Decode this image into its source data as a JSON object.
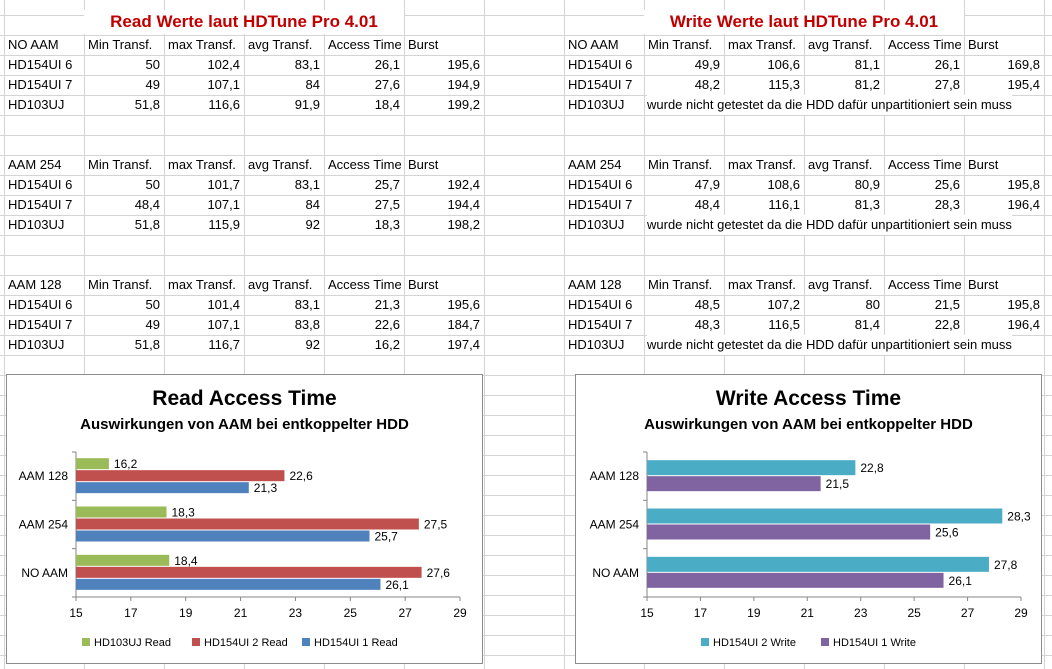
{
  "read": {
    "title": "Read Werte laut HDTune Pro 4.01",
    "headers": [
      "Min Transf.",
      "max Transf.",
      "avg Transf.",
      "Access Time",
      "Burst"
    ],
    "groups": [
      {
        "label": "NO AAM",
        "rows": [
          {
            "name": "HD154UI 6",
            "values": [
              "50",
              "102,4",
              "83,1",
              "26,1",
              "195,6"
            ]
          },
          {
            "name": "HD154UI 7",
            "values": [
              "49",
              "107,1",
              "84",
              "27,6",
              "194,9"
            ]
          },
          {
            "name": "HD103UJ",
            "values": [
              "51,8",
              "116,6",
              "91,9",
              "18,4",
              "199,2"
            ]
          }
        ]
      },
      {
        "label": "AAM 254",
        "rows": [
          {
            "name": "HD154UI 6",
            "values": [
              "50",
              "101,7",
              "83,1",
              "25,7",
              "192,4"
            ]
          },
          {
            "name": "HD154UI 7",
            "values": [
              "48,4",
              "107,1",
              "84",
              "27,5",
              "194,4"
            ]
          },
          {
            "name": "HD103UJ",
            "values": [
              "51,8",
              "115,9",
              "92",
              "18,3",
              "198,2"
            ]
          }
        ]
      },
      {
        "label": "AAM 128",
        "rows": [
          {
            "name": "HD154UI 6",
            "values": [
              "50",
              "101,4",
              "83,1",
              "21,3",
              "195,6"
            ]
          },
          {
            "name": "HD154UI 7",
            "values": [
              "49",
              "107,1",
              "83,8",
              "22,6",
              "184,7"
            ]
          },
          {
            "name": "HD103UJ",
            "values": [
              "51,8",
              "116,7",
              "92",
              "16,2",
              "197,4"
            ]
          }
        ]
      }
    ]
  },
  "write": {
    "title": "Write Werte laut HDTune Pro 4.01",
    "headers": [
      "Min Transf.",
      "max Transf.",
      "avg Transf.",
      "Access Time",
      "Burst"
    ],
    "note": "wurde nicht getestet da die HDD dafür unpartitioniert sein muss",
    "groups": [
      {
        "label": "NO AAM",
        "rows": [
          {
            "name": "HD154UI 6",
            "values": [
              "49,9",
              "106,6",
              "81,1",
              "26,1",
              "169,8"
            ]
          },
          {
            "name": "HD154UI 7",
            "values": [
              "48,2",
              "115,3",
              "81,2",
              "27,8",
              "195,4"
            ]
          },
          {
            "name": "HD103UJ",
            "values": null
          }
        ]
      },
      {
        "label": "AAM 254",
        "rows": [
          {
            "name": "HD154UI 6",
            "values": [
              "47,9",
              "108,6",
              "80,9",
              "25,6",
              "195,8"
            ]
          },
          {
            "name": "HD154UI 7",
            "values": [
              "48,4",
              "116,1",
              "81,3",
              "28,3",
              "196,4"
            ]
          },
          {
            "name": "HD103UJ",
            "values": null
          }
        ]
      },
      {
        "label": "AAM 128",
        "rows": [
          {
            "name": "HD154UI 6",
            "values": [
              "48,5",
              "107,2",
              "80",
              "21,5",
              "195,8"
            ]
          },
          {
            "name": "HD154UI 7",
            "values": [
              "48,3",
              "116,5",
              "81,4",
              "22,8",
              "196,4"
            ]
          },
          {
            "name": "HD103UJ",
            "values": null
          }
        ]
      }
    ]
  },
  "chart_data": [
    {
      "type": "bar",
      "orientation": "horizontal",
      "title": "Read Access Time",
      "subtitle": "Auswirkungen von AAM bei entkoppelter HDD",
      "categories": [
        "AAM 128",
        "AAM 254",
        "NO AAM"
      ],
      "series": [
        {
          "name": "HD103UJ Read",
          "color": "#9bbb59",
          "values": [
            16.2,
            18.3,
            18.4
          ],
          "labels": [
            "16,2",
            "18,3",
            "18,4"
          ]
        },
        {
          "name": "HD154UI 2 Read",
          "color": "#c0504d",
          "values": [
            22.6,
            27.5,
            27.6
          ],
          "labels": [
            "22,6",
            "27,5",
            "27,6"
          ]
        },
        {
          "name": "HD154UI 1 Read",
          "color": "#4f81bd",
          "values": [
            21.3,
            25.7,
            26.1
          ],
          "labels": [
            "21,3",
            "25,7",
            "26,1"
          ]
        }
      ],
      "xlim": [
        15,
        29
      ],
      "xticks": [
        "15",
        "17",
        "19",
        "21",
        "23",
        "25",
        "27",
        "29"
      ],
      "legend": "bottom"
    },
    {
      "type": "bar",
      "orientation": "horizontal",
      "title": "Write Access Time",
      "subtitle": "Auswirkungen von AAM bei entkoppelter HDD",
      "categories": [
        "AAM 128",
        "AAM 254",
        "NO AAM"
      ],
      "series": [
        {
          "name": "HD154UI 2 Write",
          "color": "#4bacc6",
          "values": [
            22.8,
            28.3,
            27.8
          ],
          "labels": [
            "22,8",
            "28,3",
            "27,8"
          ]
        },
        {
          "name": "HD154UI 1 Write",
          "color": "#8064a2",
          "values": [
            21.5,
            25.6,
            26.1
          ],
          "labels": [
            "21,5",
            "25,6",
            "26,1"
          ]
        }
      ],
      "xlim": [
        15,
        29
      ],
      "xticks": [
        "15",
        "17",
        "19",
        "21",
        "23",
        "25",
        "27",
        "29"
      ],
      "legend": "bottom"
    }
  ]
}
